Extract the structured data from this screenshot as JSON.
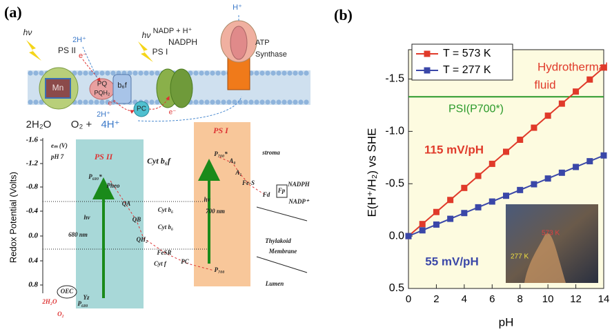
{
  "panel_a": {
    "label": "(a)",
    "membrane_labels": [
      "hν",
      "PS II",
      "2H⁺",
      "e⁻",
      "PQ",
      "PQH₂",
      "b₆f",
      "Mn",
      "e⁻",
      "2H⁺",
      "PC",
      "hν",
      "PS I",
      "NADP + H⁺",
      "NADPH",
      "e⁻",
      "H⁺",
      "ATP",
      "Synthase",
      "2H₂O",
      "O₂ +",
      "4H⁺"
    ],
    "scheme": {
      "y_axis_title": "Redox Potential (Volts)",
      "y_tick_labels": [
        "-1.6",
        "-1.2",
        "-0.8",
        "-0.4",
        "0.0",
        "0.4",
        "0.8"
      ],
      "labels": [
        "eₘ (V)",
        "pH 7",
        "PS II",
        "Cyt b₆f",
        "PS I",
        "stroma",
        "P₆₈₀*",
        "Pheo",
        "QA",
        "QB",
        "Cyt b₆",
        "Cyt b₆",
        "hν",
        "680 nm",
        "QH₂",
        "FeSR",
        "Cyt f",
        "PC",
        "P₇₀₀",
        "P₇₀₀*",
        "A₀",
        "A₁",
        "Fe-S",
        "Fd",
        "Fp",
        "NADPH",
        "NADP⁺",
        "hν",
        "700 nm",
        "Thylakoid",
        "Membrane",
        "Lumen",
        "OEC",
        "Yz",
        "P₆₈₀",
        "2H₂O",
        "O₂"
      ]
    }
  },
  "chart_data": {
    "type": "line",
    "panel_label": "(b)",
    "x_label": "pH",
    "y_label": "E(H⁺/H₂) vs SHE",
    "x": [
      0,
      1,
      2,
      3,
      4,
      5,
      6,
      7,
      8,
      9,
      10,
      11,
      12,
      13,
      14
    ],
    "series": [
      {
        "name": "T = 573 K",
        "color": "#e03a2a",
        "values": [
          0,
          -0.115,
          -0.23,
          -0.345,
          -0.46,
          -0.575,
          -0.69,
          -0.805,
          -0.92,
          -1.035,
          -1.15,
          -1.265,
          -1.38,
          -1.495,
          -1.61
        ]
      },
      {
        "name": "T = 277 K",
        "color": "#3a47a8",
        "values": [
          0,
          -0.055,
          -0.11,
          -0.165,
          -0.22,
          -0.275,
          -0.33,
          -0.385,
          -0.44,
          -0.495,
          -0.55,
          -0.605,
          -0.66,
          -0.715,
          -0.77
        ]
      }
    ],
    "xlim": [
      0,
      14
    ],
    "xticks": [
      0,
      2,
      4,
      6,
      8,
      10,
      12,
      14
    ],
    "ylim": [
      0.5,
      -1.78
    ],
    "yticks": [
      -1.5,
      {
        "value": -1,
        "label": "-1.0"
      },
      -0.5,
      {
        "value": 0,
        "label": "0.0"
      },
      0.5
    ],
    "reference_line": {
      "value": -1.33,
      "label": "PSI(P700*)",
      "color": "#2a9a2a"
    },
    "annotations": [
      "Hydrothermal",
      "fluid",
      "115 mV/pH",
      "55 mV/pH"
    ],
    "inset_labels": [
      "573 K",
      "277 K"
    ],
    "legend": "upper left",
    "background": "#fdfbe0"
  }
}
